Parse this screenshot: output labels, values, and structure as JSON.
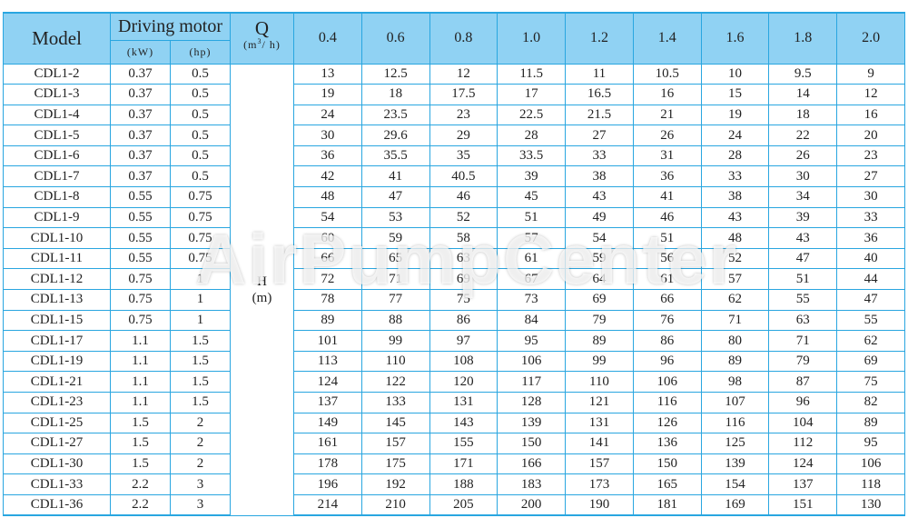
{
  "header": {
    "model": "Model",
    "driving_motor": "Driving motor",
    "kw": "(kW)",
    "hp": "(hp)",
    "q": "Q",
    "q_unit_pre": "(m",
    "q_unit_sup": "3",
    "q_unit_post": "/ h)",
    "flows": [
      "0.4",
      "0.6",
      "0.8",
      "1.0",
      "1.2",
      "1.4",
      "1.6",
      "1.8",
      "2.0"
    ]
  },
  "h_label": "H",
  "h_unit": "(m)",
  "watermark": "AirPumpCenter",
  "rows": [
    {
      "model": "CDL1-2",
      "kw": "0.37",
      "hp": "0.5",
      "h": [
        "13",
        "12.5",
        "12",
        "11.5",
        "11",
        "10.5",
        "10",
        "9.5",
        "9"
      ]
    },
    {
      "model": "CDL1-3",
      "kw": "0.37",
      "hp": "0.5",
      "h": [
        "19",
        "18",
        "17.5",
        "17",
        "16.5",
        "16",
        "15",
        "14",
        "12"
      ]
    },
    {
      "model": "CDL1-4",
      "kw": "0.37",
      "hp": "0.5",
      "h": [
        "24",
        "23.5",
        "23",
        "22.5",
        "21.5",
        "21",
        "19",
        "18",
        "16"
      ]
    },
    {
      "model": "CDL1-5",
      "kw": "0.37",
      "hp": "0.5",
      "h": [
        "30",
        "29.6",
        "29",
        "28",
        "27",
        "26",
        "24",
        "22",
        "20"
      ]
    },
    {
      "model": "CDL1-6",
      "kw": "0.37",
      "hp": "0.5",
      "h": [
        "36",
        "35.5",
        "35",
        "33.5",
        "33",
        "31",
        "28",
        "26",
        "23"
      ]
    },
    {
      "model": "CDL1-7",
      "kw": "0.37",
      "hp": "0.5",
      "h": [
        "42",
        "41",
        "40.5",
        "39",
        "38",
        "36",
        "33",
        "30",
        "27"
      ]
    },
    {
      "model": "CDL1-8",
      "kw": "0.55",
      "hp": "0.75",
      "h": [
        "48",
        "47",
        "46",
        "45",
        "43",
        "41",
        "38",
        "34",
        "30"
      ]
    },
    {
      "model": "CDL1-9",
      "kw": "0.55",
      "hp": "0.75",
      "h": [
        "54",
        "53",
        "52",
        "51",
        "49",
        "46",
        "43",
        "39",
        "33"
      ]
    },
    {
      "model": "CDL1-10",
      "kw": "0.55",
      "hp": "0.75",
      "h": [
        "60",
        "59",
        "58",
        "57",
        "54",
        "51",
        "48",
        "43",
        "36"
      ]
    },
    {
      "model": "CDL1-11",
      "kw": "0.55",
      "hp": "0.75",
      "h": [
        "66",
        "65",
        "63",
        "61",
        "59",
        "56",
        "52",
        "47",
        "40"
      ]
    },
    {
      "model": "CDL1-12",
      "kw": "0.75",
      "hp": "1",
      "h": [
        "72",
        "71",
        "69",
        "67",
        "64",
        "61",
        "57",
        "51",
        "44"
      ]
    },
    {
      "model": "CDL1-13",
      "kw": "0.75",
      "hp": "1",
      "h": [
        "78",
        "77",
        "75",
        "73",
        "69",
        "66",
        "62",
        "55",
        "47"
      ]
    },
    {
      "model": "CDL1-15",
      "kw": "0.75",
      "hp": "1",
      "h": [
        "89",
        "88",
        "86",
        "84",
        "79",
        "76",
        "71",
        "63",
        "55"
      ]
    },
    {
      "model": "CDL1-17",
      "kw": "1.1",
      "hp": "1.5",
      "h": [
        "101",
        "99",
        "97",
        "95",
        "89",
        "86",
        "80",
        "71",
        "62"
      ]
    },
    {
      "model": "CDL1-19",
      "kw": "1.1",
      "hp": "1.5",
      "h": [
        "113",
        "110",
        "108",
        "106",
        "99",
        "96",
        "89",
        "79",
        "69"
      ]
    },
    {
      "model": "CDL1-21",
      "kw": "1.1",
      "hp": "1.5",
      "h": [
        "124",
        "122",
        "120",
        "117",
        "110",
        "106",
        "98",
        "87",
        "75"
      ]
    },
    {
      "model": "CDL1-23",
      "kw": "1.1",
      "hp": "1.5",
      "h": [
        "137",
        "133",
        "131",
        "128",
        "121",
        "116",
        "107",
        "96",
        "82"
      ]
    },
    {
      "model": "CDL1-25",
      "kw": "1.5",
      "hp": "2",
      "h": [
        "149",
        "145",
        "143",
        "139",
        "131",
        "126",
        "116",
        "104",
        "89"
      ]
    },
    {
      "model": "CDL1-27",
      "kw": "1.5",
      "hp": "2",
      "h": [
        "161",
        "157",
        "155",
        "150",
        "141",
        "136",
        "125",
        "112",
        "95"
      ]
    },
    {
      "model": "CDL1-30",
      "kw": "1.5",
      "hp": "2",
      "h": [
        "178",
        "175",
        "171",
        "166",
        "157",
        "150",
        "139",
        "124",
        "106"
      ]
    },
    {
      "model": "CDL1-33",
      "kw": "2.2",
      "hp": "3",
      "h": [
        "196",
        "192",
        "188",
        "183",
        "173",
        "165",
        "154",
        "137",
        "118"
      ]
    },
    {
      "model": "CDL1-36",
      "kw": "2.2",
      "hp": "3",
      "h": [
        "214",
        "210",
        "205",
        "200",
        "190",
        "181",
        "169",
        "151",
        "130"
      ]
    }
  ]
}
